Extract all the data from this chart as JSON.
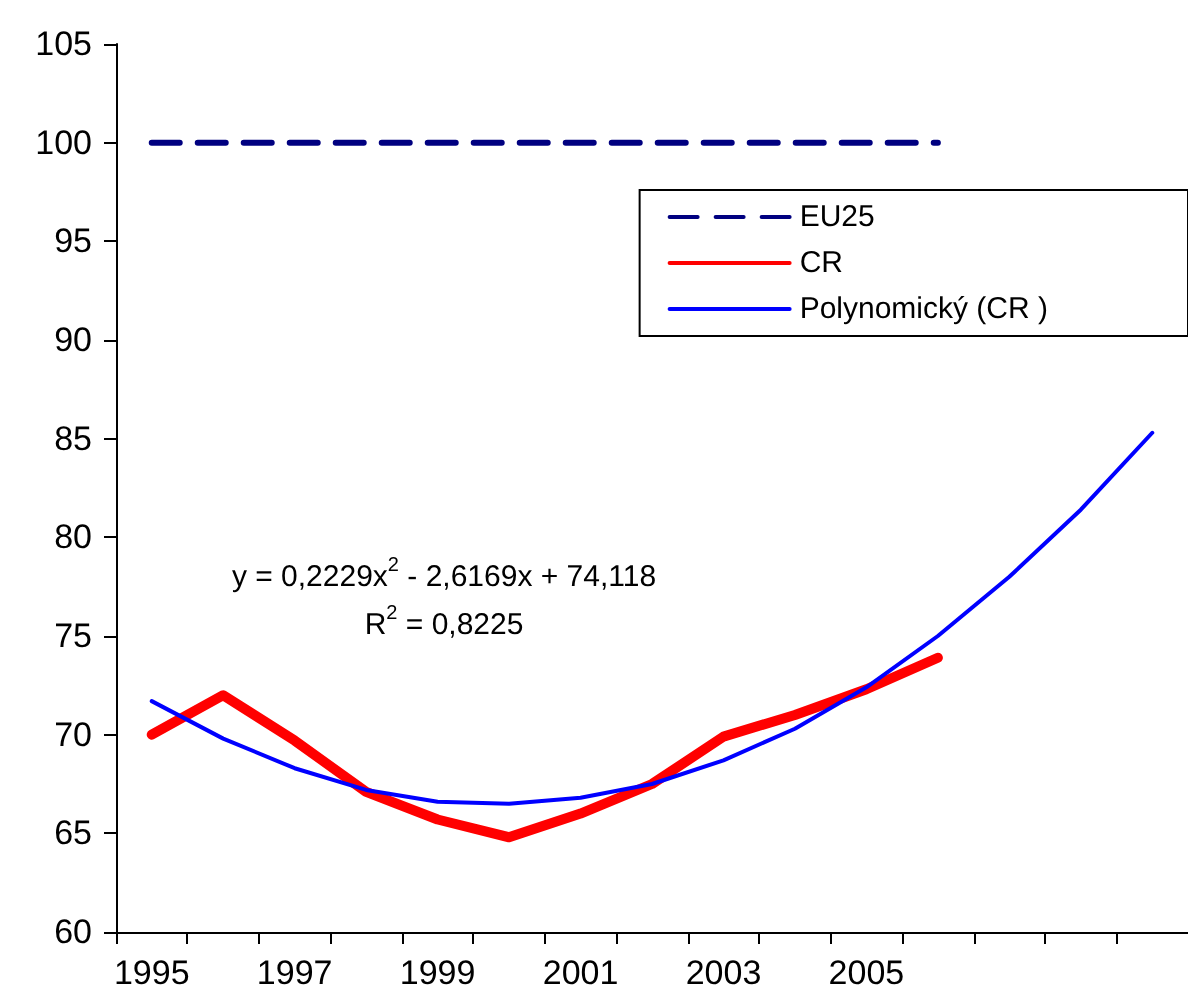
{
  "chart_data": {
    "type": "line",
    "categories": [
      "1995",
      null,
      "1997",
      null,
      "1999",
      null,
      "2001",
      null,
      "2003",
      null,
      "2005",
      null,
      null,
      null,
      null
    ],
    "series": [
      {
        "name": "EU25",
        "color": "#000080",
        "line_style": "dashed",
        "values": [
          100,
          100,
          100,
          100,
          100,
          100,
          100,
          100,
          100,
          100,
          100,
          100,
          null,
          null,
          null
        ]
      },
      {
        "name": "CR",
        "color": "#ff0000",
        "line_style": "solid",
        "values": [
          70,
          72,
          69.7,
          67.1,
          65.7,
          64.8,
          66,
          67.5,
          69.9,
          71,
          72.3,
          73.9,
          null,
          null,
          null
        ]
      },
      {
        "name": "Polynomický (CR )",
        "color": "#0000ff",
        "line_style": "solid",
        "values": [
          71.7,
          69.8,
          68.3,
          67.2,
          66.6,
          66.5,
          66.8,
          67.5,
          68.7,
          70.3,
          72.4,
          75.0,
          78.0,
          81.4,
          85.3
        ]
      }
    ],
    "ylim": [
      60,
      105
    ],
    "yticks": [
      60,
      65,
      70,
      75,
      80,
      85,
      90,
      95,
      100,
      105
    ],
    "grid": false,
    "legend": "top right",
    "marker": "none",
    "annotations": [
      "y = 0,2229x$^{2}$ - 2,6169x + 74,118",
      "R$^{2}$ = 0,8225"
    ]
  }
}
